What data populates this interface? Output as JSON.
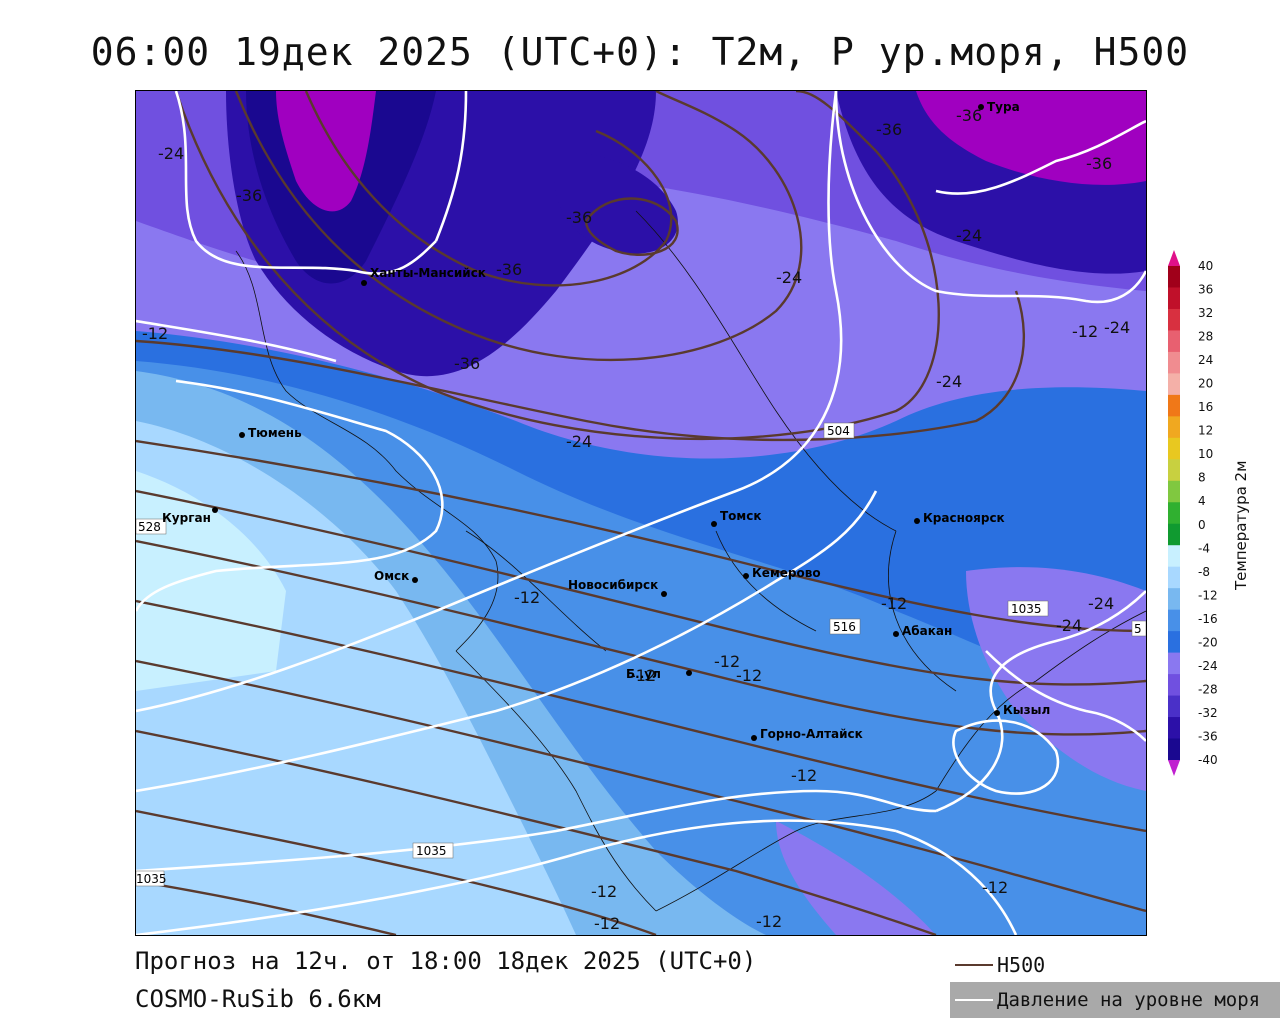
{
  "title": "06:00 19дек 2025 (UTC+0): Т2м, Р ур.моря, H500",
  "footer": {
    "forecast": "Прогноз на 12ч. от 18:00 18дек 2025 (UTC+0)",
    "model": "COSMO-RuSib 6.6км"
  },
  "legend": {
    "h500": "H500",
    "pressure": "Давление на уровне моря",
    "h500_color": "#5a3a2e",
    "pressure_color": "#ffffff"
  },
  "colorbar": {
    "title": "Температура 2м",
    "ticks": [
      "40",
      "36",
      "32",
      "28",
      "24",
      "20",
      "16",
      "12",
      "10",
      "8",
      "4",
      "0",
      "-4",
      "-8",
      "-12",
      "-16",
      "-20",
      "-24",
      "-28",
      "-32",
      "-36",
      "-40"
    ],
    "colors": [
      "#a0001a",
      "#c0102a",
      "#d83040",
      "#e86070",
      "#f08c90",
      "#f4b0a8",
      "#f07818",
      "#f0a820",
      "#e8c820",
      "#c8d040",
      "#80c840",
      "#30b030",
      "#109a30",
      "#c8f0ff",
      "#a8d8ff",
      "#78b8f0",
      "#4890e8",
      "#2a70e0",
      "#8a78f0",
      "#7050e0",
      "#4a30c8",
      "#2c10a8",
      "#1a0890"
    ]
  },
  "cities": [
    {
      "name": "Тура"
    },
    {
      "name": "Ханты-Мансийск"
    },
    {
      "name": "Тюмень"
    },
    {
      "name": "Курган"
    },
    {
      "name": "Омск"
    },
    {
      "name": "Новосибирск"
    },
    {
      "name": "Томск"
    },
    {
      "name": "Красноярск"
    },
    {
      "name": "Кемерово"
    },
    {
      "name": "Абакан"
    },
    {
      "name": "Кызыл"
    },
    {
      "name": "Горно-Алтайск"
    },
    {
      "name": "Б..ул"
    }
  ],
  "isotherm_labels": [
    "-24",
    "-36",
    "-36",
    "-36",
    "-36",
    "-36",
    "-36",
    "-36",
    "-24",
    "-24",
    "-24",
    "-24",
    "-12",
    "-24",
    "-12",
    "-12",
    "-12",
    "-12",
    "-24",
    "-24",
    "-12",
    "-12",
    "-12",
    "-12",
    "-12",
    "-12",
    "-12"
  ],
  "box_labels": [
    "504",
    "516",
    "1035",
    "1035",
    "528",
    "1035",
    "5"
  ]
}
